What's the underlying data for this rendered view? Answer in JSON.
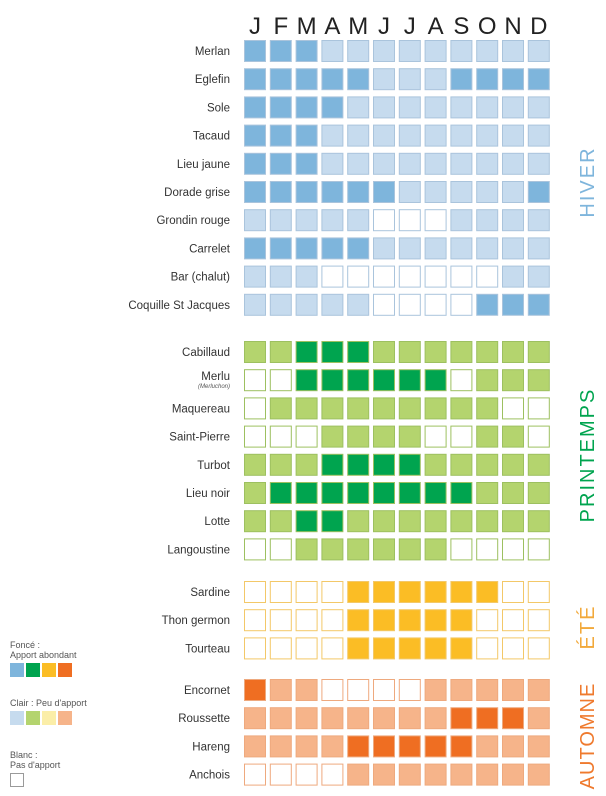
{
  "colors": {
    "hiver": {
      "dark": "#7eb5dc",
      "light": "#c6dbee",
      "border": "#aac4dc"
    },
    "printemps": {
      "dark": "#00a44f",
      "light": "#b4d46e",
      "border": "#9dc060"
    },
    "ete": {
      "dark": "#fbbd25",
      "light": "#fbeea8",
      "border": "#f3c868"
    },
    "automne": {
      "dark": "#ef6e22",
      "light": "#f6b48a",
      "border": "#eea97e"
    },
    "season_label": {
      "hiver": "#7eb5dc",
      "printemps": "#00a44f",
      "ete": "#f2a93b",
      "automne": "#ef7a2e"
    }
  },
  "legend": {
    "dark_title": "Foncé :",
    "dark_text": "Apport abondant",
    "light_title": "Clair : Peu d'apport",
    "white_title": "Blanc :",
    "white_text": "Pas d'apport"
  },
  "chart_data": {
    "type": "heatmap",
    "title": "",
    "months": [
      "J",
      "F",
      "M",
      "A",
      "M",
      "J",
      "J",
      "A",
      "S",
      "O",
      "N",
      "D"
    ],
    "value_meaning": {
      "2": "Apport abondant",
      "1": "Peu d'apport",
      "0": "Pas d'apport"
    },
    "seasons": [
      {
        "name": "HIVER",
        "key": "hiver",
        "species": [
          {
            "name": "Merlan",
            "values": [
              2,
              2,
              2,
              1,
              1,
              1,
              1,
              1,
              1,
              1,
              1,
              1
            ]
          },
          {
            "name": "Eglefin",
            "values": [
              2,
              2,
              2,
              2,
              2,
              1,
              1,
              1,
              2,
              2,
              2,
              2
            ]
          },
          {
            "name": "Sole",
            "values": [
              2,
              2,
              2,
              2,
              1,
              1,
              1,
              1,
              1,
              1,
              1,
              1
            ]
          },
          {
            "name": "Tacaud",
            "values": [
              2,
              2,
              2,
              1,
              1,
              1,
              1,
              1,
              1,
              1,
              1,
              1
            ]
          },
          {
            "name": "Lieu jaune",
            "values": [
              2,
              2,
              2,
              1,
              1,
              1,
              1,
              1,
              1,
              1,
              1,
              1
            ]
          },
          {
            "name": "Dorade grise",
            "values": [
              2,
              2,
              2,
              2,
              2,
              2,
              1,
              1,
              1,
              1,
              1,
              2
            ]
          },
          {
            "name": "Grondin rouge",
            "values": [
              1,
              1,
              1,
              1,
              1,
              0,
              0,
              0,
              1,
              1,
              1,
              1
            ]
          },
          {
            "name": "Carrelet",
            "values": [
              2,
              2,
              2,
              2,
              2,
              1,
              1,
              1,
              1,
              1,
              1,
              1
            ]
          },
          {
            "name": "Bar (chalut)",
            "values": [
              1,
              1,
              1,
              0,
              0,
              0,
              0,
              0,
              0,
              0,
              1,
              1
            ]
          },
          {
            "name": "Coquille St Jacques",
            "values": [
              1,
              1,
              1,
              1,
              1,
              0,
              0,
              0,
              0,
              2,
              2,
              2
            ]
          }
        ]
      },
      {
        "name": "PRINTEMPS",
        "key": "printemps",
        "species": [
          {
            "name": "Cabillaud",
            "values": [
              1,
              1,
              2,
              2,
              2,
              1,
              1,
              1,
              1,
              1,
              1,
              1
            ]
          },
          {
            "name": "Merlu",
            "subname": "(Merluchon)",
            "values": [
              0,
              0,
              2,
              2,
              2,
              2,
              2,
              2,
              0,
              1,
              1,
              1
            ]
          },
          {
            "name": "Maquereau",
            "values": [
              0,
              1,
              1,
              1,
              1,
              1,
              1,
              1,
              1,
              1,
              0,
              0
            ]
          },
          {
            "name": "Saint-Pierre",
            "values": [
              0,
              0,
              0,
              1,
              1,
              1,
              1,
              0,
              0,
              1,
              1,
              0
            ]
          },
          {
            "name": "Turbot",
            "values": [
              1,
              1,
              1,
              2,
              2,
              2,
              2,
              1,
              1,
              1,
              1,
              1
            ]
          },
          {
            "name": "Lieu noir",
            "values": [
              1,
              2,
              2,
              2,
              2,
              2,
              2,
              2,
              2,
              1,
              1,
              1
            ]
          },
          {
            "name": "Lotte",
            "values": [
              1,
              1,
              2,
              2,
              1,
              1,
              1,
              1,
              1,
              1,
              1,
              1
            ]
          },
          {
            "name": "Langoustine",
            "values": [
              0,
              0,
              1,
              1,
              1,
              1,
              1,
              1,
              0,
              0,
              0,
              0
            ]
          }
        ]
      },
      {
        "name": "ÉTÉ",
        "key": "ete",
        "species": [
          {
            "name": "Sardine",
            "values": [
              0,
              0,
              0,
              0,
              2,
              2,
              2,
              2,
              2,
              2,
              0,
              0
            ]
          },
          {
            "name": "Thon germon",
            "values": [
              0,
              0,
              0,
              0,
              2,
              2,
              2,
              2,
              2,
              0,
              0,
              0
            ]
          },
          {
            "name": "Tourteau",
            "values": [
              0,
              0,
              0,
              0,
              2,
              2,
              2,
              2,
              2,
              0,
              0,
              0
            ]
          }
        ]
      },
      {
        "name": "AUTOMNE",
        "key": "automne",
        "species": [
          {
            "name": "Encornet",
            "values": [
              2,
              1,
              1,
              0,
              0,
              0,
              0,
              1,
              1,
              1,
              1,
              1
            ]
          },
          {
            "name": "Roussette",
            "values": [
              1,
              1,
              1,
              1,
              1,
              1,
              1,
              1,
              2,
              2,
              2,
              1
            ]
          },
          {
            "name": "Hareng",
            "values": [
              1,
              1,
              1,
              1,
              2,
              2,
              2,
              2,
              2,
              1,
              1,
              1
            ]
          },
          {
            "name": "Anchois",
            "values": [
              0,
              0,
              0,
              0,
              1,
              1,
              1,
              1,
              1,
              1,
              1,
              1
            ]
          }
        ]
      }
    ]
  }
}
